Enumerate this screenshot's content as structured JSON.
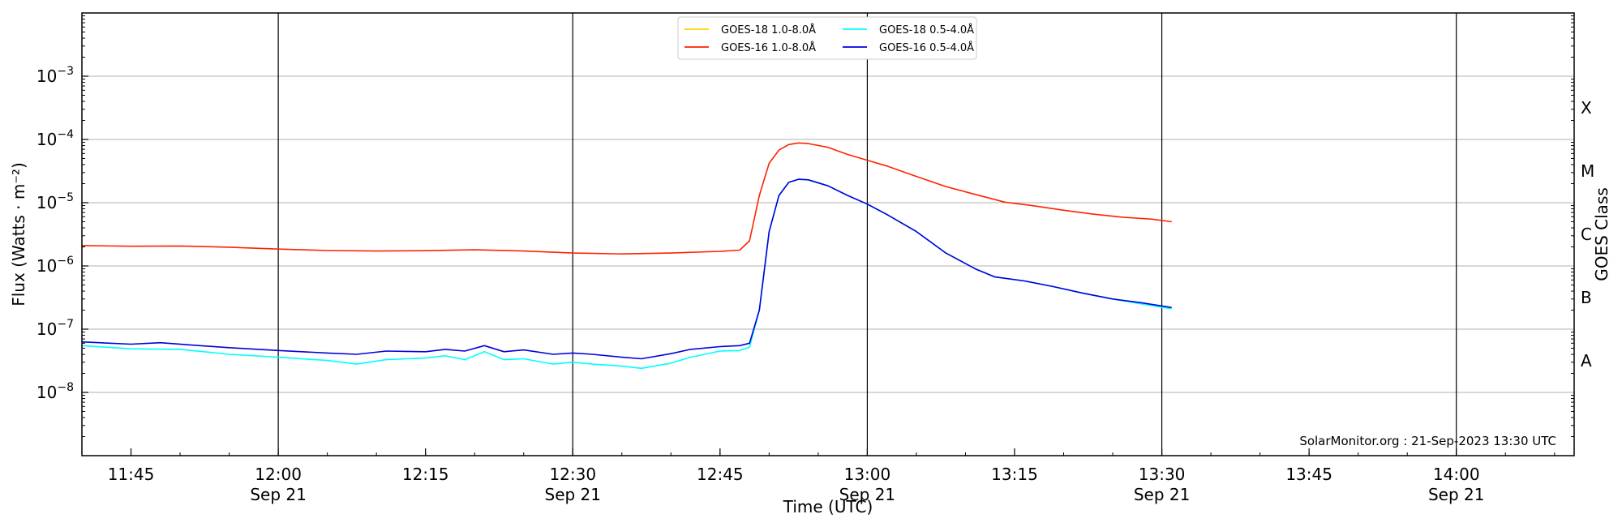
{
  "chart_data": {
    "type": "line",
    "xlabel": "Time (UTC)",
    "ylabel": "Flux (Watts · m⁻²)",
    "right_label": "GOES Class",
    "yscale": "log",
    "ylim": [
      1e-09,
      0.01
    ],
    "xlim": [
      "2023-09-21T11:40",
      "2023-09-21T14:12"
    ],
    "grid": "horizontal",
    "legend_position": "top-center",
    "y_ticks": [
      {
        "value": 1e-08,
        "base": "10",
        "exp": "−8"
      },
      {
        "value": 1e-07,
        "base": "10",
        "exp": "−7"
      },
      {
        "value": 1e-06,
        "base": "10",
        "exp": "−6"
      },
      {
        "value": 1e-05,
        "base": "10",
        "exp": "−5"
      },
      {
        "value": 0.0001,
        "base": "10",
        "exp": "−4"
      },
      {
        "value": 0.001,
        "base": "10",
        "exp": "−3"
      }
    ],
    "x_ticks": [
      {
        "time": "2023-09-21T11:45",
        "label": "11:45",
        "sublabel": ""
      },
      {
        "time": "2023-09-21T12:00",
        "label": "12:00",
        "sublabel": "Sep 21"
      },
      {
        "time": "2023-09-21T12:15",
        "label": "12:15",
        "sublabel": ""
      },
      {
        "time": "2023-09-21T12:30",
        "label": "12:30",
        "sublabel": "Sep 21"
      },
      {
        "time": "2023-09-21T12:45",
        "label": "12:45",
        "sublabel": ""
      },
      {
        "time": "2023-09-21T13:00",
        "label": "13:00",
        "sublabel": "Sep 21"
      },
      {
        "time": "2023-09-21T13:15",
        "label": "13:15",
        "sublabel": ""
      },
      {
        "time": "2023-09-21T13:30",
        "label": "13:30",
        "sublabel": "Sep 21"
      },
      {
        "time": "2023-09-21T13:45",
        "label": "13:45",
        "sublabel": ""
      },
      {
        "time": "2023-09-21T14:00",
        "label": "14:00",
        "sublabel": "Sep 21"
      }
    ],
    "vertical_lines": [
      "2023-09-21T12:00",
      "2023-09-21T12:30",
      "2023-09-21T13:00",
      "2023-09-21T13:30",
      "2023-09-21T14:00"
    ],
    "goes_classes": [
      {
        "label": "A",
        "value": 3.16e-08
      },
      {
        "label": "B",
        "value": 3.16e-07
      },
      {
        "label": "C",
        "value": 3.16e-06
      },
      {
        "label": "M",
        "value": 3.16e-05
      },
      {
        "label": "X",
        "value": 0.000316
      }
    ],
    "series": [
      {
        "name": "GOES-18 1.0-8.0Å",
        "color": "#ffd700",
        "data": []
      },
      {
        "name": "GOES-16 1.0-8.0Å",
        "color": "#ff2200",
        "data": [
          [
            "2023-09-21T11:40",
            2.1e-06
          ],
          [
            "2023-09-21T11:45",
            2.05e-06
          ],
          [
            "2023-09-21T11:50",
            2.07e-06
          ],
          [
            "2023-09-21T11:55",
            1.98e-06
          ],
          [
            "2023-09-21T12:00",
            1.85e-06
          ],
          [
            "2023-09-21T12:05",
            1.75e-06
          ],
          [
            "2023-09-21T12:10",
            1.72e-06
          ],
          [
            "2023-09-21T12:15",
            1.74e-06
          ],
          [
            "2023-09-21T12:20",
            1.8e-06
          ],
          [
            "2023-09-21T12:25",
            1.72e-06
          ],
          [
            "2023-09-21T12:30",
            1.6e-06
          ],
          [
            "2023-09-21T12:35",
            1.55e-06
          ],
          [
            "2023-09-21T12:40",
            1.6e-06
          ],
          [
            "2023-09-21T12:45",
            1.7e-06
          ],
          [
            "2023-09-21T12:47",
            1.78e-06
          ],
          [
            "2023-09-21T12:48",
            2.5e-06
          ],
          [
            "2023-09-21T12:49",
            1.3e-05
          ],
          [
            "2023-09-21T12:50",
            4.2e-05
          ],
          [
            "2023-09-21T12:51",
            6.8e-05
          ],
          [
            "2023-09-21T12:52",
            8.3e-05
          ],
          [
            "2023-09-21T12:53",
            8.8e-05
          ],
          [
            "2023-09-21T12:54",
            8.6e-05
          ],
          [
            "2023-09-21T12:56",
            7.5e-05
          ],
          [
            "2023-09-21T12:58",
            5.8e-05
          ],
          [
            "2023-09-21T13:00",
            4.7e-05
          ],
          [
            "2023-09-21T13:02",
            3.8e-05
          ],
          [
            "2023-09-21T13:05",
            2.6e-05
          ],
          [
            "2023-09-21T13:08",
            1.8e-05
          ],
          [
            "2023-09-21T13:11",
            1.35e-05
          ],
          [
            "2023-09-21T13:14",
            1.02e-05
          ],
          [
            "2023-09-21T13:17",
            8.9e-06
          ],
          [
            "2023-09-21T13:20",
            7.6e-06
          ],
          [
            "2023-09-21T13:23",
            6.6e-06
          ],
          [
            "2023-09-21T13:26",
            5.9e-06
          ],
          [
            "2023-09-21T13:29",
            5.5e-06
          ],
          [
            "2023-09-21T13:31",
            5e-06
          ]
        ]
      },
      {
        "name": "GOES-18 0.5-4.0Å",
        "color": "#00ffff",
        "data": [
          [
            "2023-09-21T11:40",
            5.5e-08
          ],
          [
            "2023-09-21T11:45",
            4.9e-08
          ],
          [
            "2023-09-21T11:50",
            4.8e-08
          ],
          [
            "2023-09-21T11:55",
            4e-08
          ],
          [
            "2023-09-21T12:00",
            3.6e-08
          ],
          [
            "2023-09-21T12:05",
            3.2e-08
          ],
          [
            "2023-09-21T12:08",
            2.8e-08
          ],
          [
            "2023-09-21T12:11",
            3.3e-08
          ],
          [
            "2023-09-21T12:15",
            3.5e-08
          ],
          [
            "2023-09-21T12:17",
            3.8e-08
          ],
          [
            "2023-09-21T12:19",
            3.3e-08
          ],
          [
            "2023-09-21T12:21",
            4.4e-08
          ],
          [
            "2023-09-21T12:23",
            3.3e-08
          ],
          [
            "2023-09-21T12:25",
            3.4e-08
          ],
          [
            "2023-09-21T12:28",
            2.8e-08
          ],
          [
            "2023-09-21T12:30",
            3e-08
          ],
          [
            "2023-09-21T12:32",
            2.8e-08
          ],
          [
            "2023-09-21T12:35",
            2.6e-08
          ],
          [
            "2023-09-21T12:37",
            2.4e-08
          ],
          [
            "2023-09-21T12:40",
            2.9e-08
          ],
          [
            "2023-09-21T12:42",
            3.6e-08
          ],
          [
            "2023-09-21T12:45",
            4.5e-08
          ],
          [
            "2023-09-21T12:47",
            4.6e-08
          ],
          [
            "2023-09-21T12:48",
            5.2e-08
          ],
          [
            "2023-09-21T12:49",
            2e-07
          ],
          [
            "2023-09-21T12:50",
            3.5e-06
          ],
          [
            "2023-09-21T12:51",
            1.3e-05
          ],
          [
            "2023-09-21T12:52",
            2.1e-05
          ],
          [
            "2023-09-21T12:53",
            2.35e-05
          ],
          [
            "2023-09-21T12:54",
            2.3e-05
          ],
          [
            "2023-09-21T12:56",
            1.85e-05
          ],
          [
            "2023-09-21T12:58",
            1.3e-05
          ],
          [
            "2023-09-21T13:00",
            9.5e-06
          ],
          [
            "2023-09-21T13:02",
            6.5e-06
          ],
          [
            "2023-09-21T13:05",
            3.5e-06
          ],
          [
            "2023-09-21T13:08",
            1.6e-06
          ],
          [
            "2023-09-21T13:11",
            9e-07
          ],
          [
            "2023-09-21T13:13",
            6.7e-07
          ],
          [
            "2023-09-21T13:16",
            5.8e-07
          ],
          [
            "2023-09-21T13:19",
            4.7e-07
          ],
          [
            "2023-09-21T13:22",
            3.7e-07
          ],
          [
            "2023-09-21T13:25",
            3e-07
          ],
          [
            "2023-09-21T13:28",
            2.5e-07
          ],
          [
            "2023-09-21T13:31",
            2.1e-07
          ]
        ]
      },
      {
        "name": "GOES-16 0.5-4.0Å",
        "color": "#0000dd",
        "data": [
          [
            "2023-09-21T11:40",
            6.3e-08
          ],
          [
            "2023-09-21T11:45",
            5.8e-08
          ],
          [
            "2023-09-21T11:48",
            6.1e-08
          ],
          [
            "2023-09-21T11:52",
            5.5e-08
          ],
          [
            "2023-09-21T11:55",
            5.1e-08
          ],
          [
            "2023-09-21T12:00",
            4.6e-08
          ],
          [
            "2023-09-21T12:05",
            4.2e-08
          ],
          [
            "2023-09-21T12:08",
            4e-08
          ],
          [
            "2023-09-21T12:11",
            4.5e-08
          ],
          [
            "2023-09-21T12:15",
            4.4e-08
          ],
          [
            "2023-09-21T12:17",
            4.8e-08
          ],
          [
            "2023-09-21T12:19",
            4.5e-08
          ],
          [
            "2023-09-21T12:21",
            5.5e-08
          ],
          [
            "2023-09-21T12:23",
            4.4e-08
          ],
          [
            "2023-09-21T12:25",
            4.7e-08
          ],
          [
            "2023-09-21T12:28",
            4e-08
          ],
          [
            "2023-09-21T12:30",
            4.2e-08
          ],
          [
            "2023-09-21T12:32",
            4e-08
          ],
          [
            "2023-09-21T12:35",
            3.6e-08
          ],
          [
            "2023-09-21T12:37",
            3.4e-08
          ],
          [
            "2023-09-21T12:40",
            4.1e-08
          ],
          [
            "2023-09-21T12:42",
            4.8e-08
          ],
          [
            "2023-09-21T12:45",
            5.3e-08
          ],
          [
            "2023-09-21T12:47",
            5.5e-08
          ],
          [
            "2023-09-21T12:48",
            6e-08
          ],
          [
            "2023-09-21T12:49",
            2e-07
          ],
          [
            "2023-09-21T12:50",
            3.5e-06
          ],
          [
            "2023-09-21T12:51",
            1.3e-05
          ],
          [
            "2023-09-21T12:52",
            2.1e-05
          ],
          [
            "2023-09-21T12:53",
            2.35e-05
          ],
          [
            "2023-09-21T12:54",
            2.3e-05
          ],
          [
            "2023-09-21T12:56",
            1.85e-05
          ],
          [
            "2023-09-21T12:58",
            1.3e-05
          ],
          [
            "2023-09-21T13:00",
            9.5e-06
          ],
          [
            "2023-09-21T13:02",
            6.5e-06
          ],
          [
            "2023-09-21T13:05",
            3.5e-06
          ],
          [
            "2023-09-21T13:08",
            1.6e-06
          ],
          [
            "2023-09-21T13:11",
            9e-07
          ],
          [
            "2023-09-21T13:13",
            6.7e-07
          ],
          [
            "2023-09-21T13:16",
            5.8e-07
          ],
          [
            "2023-09-21T13:19",
            4.7e-07
          ],
          [
            "2023-09-21T13:22",
            3.7e-07
          ],
          [
            "2023-09-21T13:25",
            3e-07
          ],
          [
            "2023-09-21T13:28",
            2.6e-07
          ],
          [
            "2023-09-21T13:31",
            2.2e-07
          ]
        ]
      }
    ],
    "footer": "SolarMonitor.org : 21-Sep-2023 13:30 UTC"
  }
}
